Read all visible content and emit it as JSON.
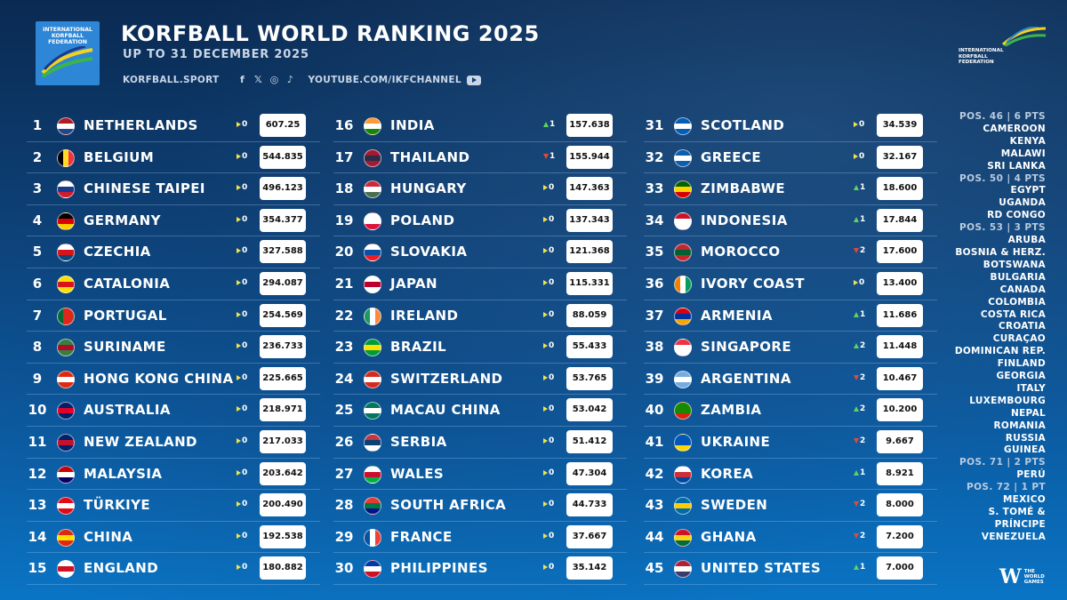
{
  "header": {
    "logo_text": "INTERNATIONAL KORFBALL FEDERATION",
    "title": "KORFBALL WORLD RANKING 2025",
    "subtitle": "UP TO 31 DECEMBER 2025",
    "site": "KORFBALL.SPORT",
    "channel": "YOUTUBE.COM/IKFCHANNEL",
    "social_icons": [
      "facebook-icon",
      "x-icon",
      "instagram-icon",
      "tiktok-icon",
      "youtube-icon"
    ],
    "right_logo_text": "INTERNATIONAL KORFBALL FEDERATION"
  },
  "colors": {
    "same": "#f1e34a",
    "up": "#5fd35f",
    "down": "#e04a3a",
    "points_box": "#ffffff"
  },
  "rankings": [
    {
      "rank": "1",
      "name": "NETHERLANDS",
      "dir": "same",
      "change": "0",
      "points": "607.25",
      "flag": [
        "#ae1c28",
        "#ffffff",
        "#21468b"
      ]
    },
    {
      "rank": "2",
      "name": "BELGIUM",
      "dir": "same",
      "change": "0",
      "points": "544.835",
      "flag": [
        "#000000",
        "#fdda24",
        "#ef3340"
      ],
      "vertical": true
    },
    {
      "rank": "3",
      "name": "CHINESE TAIPEI",
      "dir": "same",
      "change": "0",
      "points": "496.123",
      "flag": [
        "#ffffff",
        "#1a3a8c",
        "#d01c2c"
      ]
    },
    {
      "rank": "4",
      "name": "GERMANY",
      "dir": "same",
      "change": "0",
      "points": "354.377",
      "flag": [
        "#000000",
        "#dd0000",
        "#ffce00"
      ]
    },
    {
      "rank": "5",
      "name": "CZECHIA",
      "dir": "same",
      "change": "0",
      "points": "327.588",
      "flag": [
        "#ffffff",
        "#d7141a",
        "#11457e"
      ]
    },
    {
      "rank": "6",
      "name": "CATALONIA",
      "dir": "same",
      "change": "0",
      "points": "294.087",
      "flag": [
        "#fcdd09",
        "#da121a",
        "#fcdd09"
      ]
    },
    {
      "rank": "7",
      "name": "PORTUGAL",
      "dir": "same",
      "change": "0",
      "points": "254.569",
      "flag": [
        "#046a38",
        "#da291c",
        "#da291c"
      ],
      "vertical": true
    },
    {
      "rank": "8",
      "name": "SURINAME",
      "dir": "same",
      "change": "0",
      "points": "236.733",
      "flag": [
        "#377e3f",
        "#b40a2d",
        "#377e3f"
      ]
    },
    {
      "rank": "9",
      "name": "HONG KONG CHINA",
      "dir": "same",
      "change": "0",
      "points": "225.665",
      "flag": [
        "#de2910",
        "#ffffff",
        "#de2910"
      ]
    },
    {
      "rank": "10",
      "name": "AUSTRALIA",
      "dir": "same",
      "change": "0",
      "points": "218.971",
      "flag": [
        "#012169",
        "#e4002b",
        "#012169"
      ]
    },
    {
      "rank": "11",
      "name": "NEW ZEALAND",
      "dir": "same",
      "change": "0",
      "points": "217.033",
      "flag": [
        "#012169",
        "#c8102e",
        "#012169"
      ]
    },
    {
      "rank": "12",
      "name": "MALAYSIA",
      "dir": "same",
      "change": "0",
      "points": "203.642",
      "flag": [
        "#cc0001",
        "#ffffff",
        "#010066"
      ]
    },
    {
      "rank": "13",
      "name": "TÜRKIYE",
      "dir": "same",
      "change": "0",
      "points": "200.490",
      "flag": [
        "#e30a17",
        "#ffffff",
        "#e30a17"
      ]
    },
    {
      "rank": "14",
      "name": "CHINA",
      "dir": "same",
      "change": "0",
      "points": "192.538",
      "flag": [
        "#de2910",
        "#ffde00",
        "#de2910"
      ]
    },
    {
      "rank": "15",
      "name": "ENGLAND",
      "dir": "same",
      "change": "0",
      "points": "180.882",
      "flag": [
        "#ffffff",
        "#ce1124",
        "#ffffff"
      ]
    },
    {
      "rank": "16",
      "name": "INDIA",
      "dir": "up",
      "change": "1",
      "points": "157.638",
      "flag": [
        "#ff9933",
        "#ffffff",
        "#138808"
      ]
    },
    {
      "rank": "17",
      "name": "THAILAND",
      "dir": "down",
      "change": "1",
      "points": "155.944",
      "flag": [
        "#a51931",
        "#2d2a4a",
        "#a51931"
      ]
    },
    {
      "rank": "18",
      "name": "HUNGARY",
      "dir": "same",
      "change": "0",
      "points": "147.363",
      "flag": [
        "#ce2939",
        "#ffffff",
        "#477050"
      ]
    },
    {
      "rank": "19",
      "name": "POLAND",
      "dir": "same",
      "change": "0",
      "points": "137.343",
      "flag": [
        "#ffffff",
        "#ffffff",
        "#dc143c"
      ]
    },
    {
      "rank": "20",
      "name": "SLOVAKIA",
      "dir": "same",
      "change": "0",
      "points": "121.368",
      "flag": [
        "#ffffff",
        "#0b4ea2",
        "#ee1c25"
      ]
    },
    {
      "rank": "21",
      "name": "JAPAN",
      "dir": "same",
      "change": "0",
      "points": "115.331",
      "flag": [
        "#ffffff",
        "#bc002d",
        "#ffffff"
      ]
    },
    {
      "rank": "22",
      "name": "IRELAND",
      "dir": "same",
      "change": "0",
      "points": "88.059",
      "flag": [
        "#169b62",
        "#ffffff",
        "#ff883e"
      ],
      "vertical": true
    },
    {
      "rank": "23",
      "name": "BRAZIL",
      "dir": "same",
      "change": "0",
      "points": "55.433",
      "flag": [
        "#009c3b",
        "#ffdf00",
        "#009c3b"
      ]
    },
    {
      "rank": "24",
      "name": "SWITZERLAND",
      "dir": "same",
      "change": "0",
      "points": "53.765",
      "flag": [
        "#d52b1e",
        "#ffffff",
        "#d52b1e"
      ]
    },
    {
      "rank": "25",
      "name": "MACAU CHINA",
      "dir": "same",
      "change": "0",
      "points": "53.042",
      "flag": [
        "#00785e",
        "#ffffff",
        "#00785e"
      ]
    },
    {
      "rank": "26",
      "name": "SERBIA",
      "dir": "same",
      "change": "0",
      "points": "51.412",
      "flag": [
        "#c6363c",
        "#0c4076",
        "#ffffff"
      ]
    },
    {
      "rank": "27",
      "name": "WALES",
      "dir": "same",
      "change": "0",
      "points": "47.304",
      "flag": [
        "#ffffff",
        "#c8102e",
        "#00b140"
      ]
    },
    {
      "rank": "28",
      "name": "SOUTH AFRICA",
      "dir": "same",
      "change": "0",
      "points": "44.733",
      "flag": [
        "#e03c31",
        "#007749",
        "#001489"
      ]
    },
    {
      "rank": "29",
      "name": "FRANCE",
      "dir": "same",
      "change": "0",
      "points": "37.667",
      "flag": [
        "#0055a4",
        "#ffffff",
        "#ef4135"
      ],
      "vertical": true
    },
    {
      "rank": "30",
      "name": "PHILIPPINES",
      "dir": "same",
      "change": "0",
      "points": "35.142",
      "flag": [
        "#0038a8",
        "#ffffff",
        "#ce1126"
      ]
    },
    {
      "rank": "31",
      "name": "SCOTLAND",
      "dir": "same",
      "change": "0",
      "points": "34.539",
      "flag": [
        "#005eb8",
        "#ffffff",
        "#005eb8"
      ]
    },
    {
      "rank": "32",
      "name": "GREECE",
      "dir": "same",
      "change": "0",
      "points": "32.167",
      "flag": [
        "#0d5eaf",
        "#ffffff",
        "#0d5eaf"
      ]
    },
    {
      "rank": "33",
      "name": "ZIMBABWE",
      "dir": "up",
      "change": "1",
      "points": "18.600",
      "flag": [
        "#006400",
        "#ffd200",
        "#d40000"
      ]
    },
    {
      "rank": "34",
      "name": "INDONESIA",
      "dir": "up",
      "change": "1",
      "points": "17.844",
      "flag": [
        "#ce1126",
        "#ffffff",
        "#ffffff"
      ]
    },
    {
      "rank": "35",
      "name": "MOROCCO",
      "dir": "down",
      "change": "2",
      "points": "17.600",
      "flag": [
        "#c1272d",
        "#006233",
        "#c1272d"
      ]
    },
    {
      "rank": "36",
      "name": "IVORY COAST",
      "dir": "same",
      "change": "0",
      "points": "13.400",
      "flag": [
        "#f77f00",
        "#ffffff",
        "#009e60"
      ],
      "vertical": true
    },
    {
      "rank": "37",
      "name": "ARMENIA",
      "dir": "up",
      "change": "1",
      "points": "11.686",
      "flag": [
        "#d90012",
        "#0033a0",
        "#f2a800"
      ]
    },
    {
      "rank": "38",
      "name": "SINGAPORE",
      "dir": "up",
      "change": "2",
      "points": "11.448",
      "flag": [
        "#ef3340",
        "#ffffff",
        "#ffffff"
      ]
    },
    {
      "rank": "39",
      "name": "ARGENTINA",
      "dir": "down",
      "change": "2",
      "points": "10.467",
      "flag": [
        "#74acdf",
        "#ffffff",
        "#74acdf"
      ]
    },
    {
      "rank": "40",
      "name": "ZAMBIA",
      "dir": "up",
      "change": "2",
      "points": "10.200",
      "flag": [
        "#198a00",
        "#198a00",
        "#de2010"
      ]
    },
    {
      "rank": "41",
      "name": "UKRAINE",
      "dir": "down",
      "change": "2",
      "points": "9.667",
      "flag": [
        "#0057b7",
        "#0057b7",
        "#ffd700"
      ]
    },
    {
      "rank": "42",
      "name": "KOREA",
      "dir": "up",
      "change": "1",
      "points": "8.921",
      "flag": [
        "#ffffff",
        "#cd2e3a",
        "#0047a0"
      ]
    },
    {
      "rank": "43",
      "name": "SWEDEN",
      "dir": "down",
      "change": "2",
      "points": "8.000",
      "flag": [
        "#006aa7",
        "#fecc00",
        "#006aa7"
      ]
    },
    {
      "rank": "44",
      "name": "GHANA",
      "dir": "down",
      "change": "2",
      "points": "7.200",
      "flag": [
        "#ce1126",
        "#fcd116",
        "#006b3f"
      ]
    },
    {
      "rank": "45",
      "name": "UNITED STATES",
      "dir": "up",
      "change": "1",
      "points": "7.000",
      "flag": [
        "#b22234",
        "#ffffff",
        "#3c3b6e"
      ]
    }
  ],
  "side_list": [
    {
      "header": "POS. 46 | 6 PTS",
      "items": [
        "CAMEROON",
        "KENYA",
        "MALAWI",
        "SRI LANKA"
      ]
    },
    {
      "header": "POS. 50 | 4 PTS",
      "items": [
        "EGYPT",
        "UGANDA",
        "RD CONGO"
      ]
    },
    {
      "header": "POS. 53 | 3 PTS",
      "items": [
        "ARUBA",
        "BOSNIA & HERZ.",
        "BOTSWANA",
        "BULGARIA",
        "CANADA",
        "COLOMBIA",
        "COSTA RICA",
        "CROATIA",
        "CURAÇAO",
        "DOMINICAN REP.",
        "FINLAND",
        "GEORGIA",
        "ITALY",
        "LUXEMBOURG",
        "NEPAL",
        "ROMANIA",
        "RUSSIA",
        "GUINEA"
      ]
    },
    {
      "header": "POS. 71 | 2 PTS",
      "items": [
        "PERÚ"
      ]
    },
    {
      "header": "POS. 72 | 1 PT",
      "items": [
        "MEXICO",
        "S. TOMÉ & PRÍNCIPE",
        "VENEZUELA"
      ]
    }
  ],
  "footer": {
    "brand_text": "THE WORLD GAMES"
  }
}
